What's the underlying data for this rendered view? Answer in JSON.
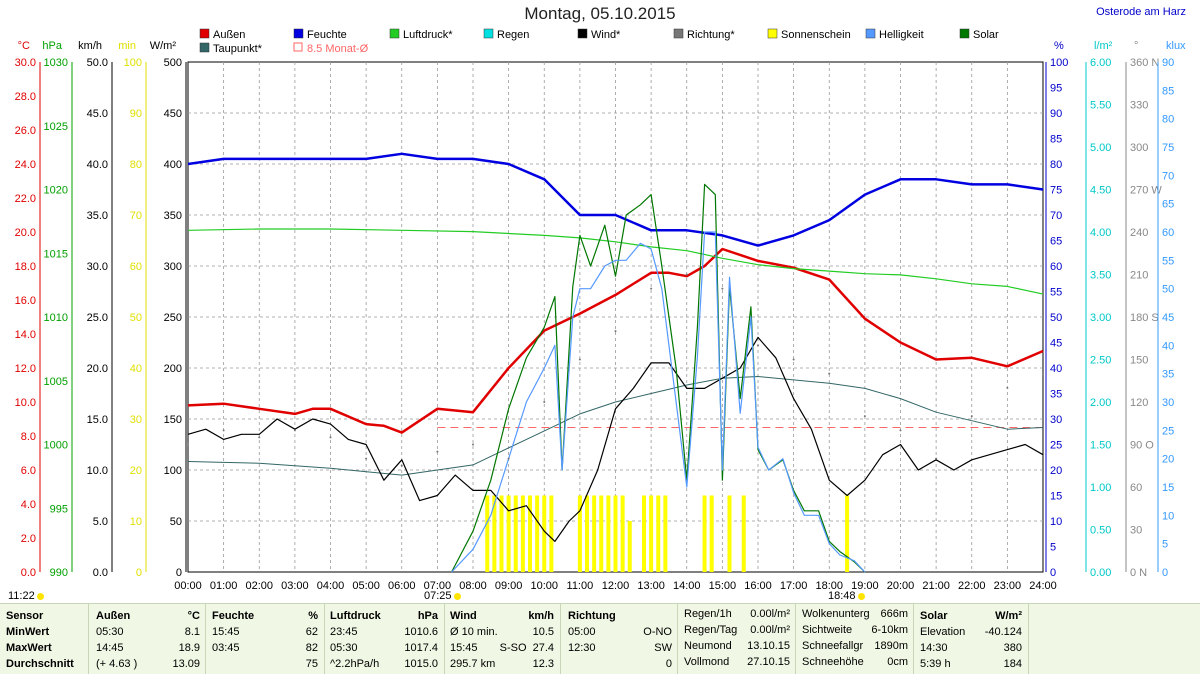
{
  "title": "Montag, 05.10.2015",
  "location": "Osterode am Harz",
  "sunrise": "07:25",
  "sunset": "18:48",
  "sun_duration_marker": "11:22",
  "legend": [
    {
      "label": "Außen",
      "color": "#e00000"
    },
    {
      "label": "Feuchte",
      "color": "#0000e0"
    },
    {
      "label": "Luftdruck*",
      "color": "#22cc22"
    },
    {
      "label": "Regen",
      "color": "#00e0e0"
    },
    {
      "label": "Wind*",
      "color": "#000000"
    },
    {
      "label": "Richtung*",
      "color": "#777777"
    },
    {
      "label": "Sonnenschein",
      "color": "#ffff00"
    },
    {
      "label": "Helligkeit",
      "color": "#5599ff"
    },
    {
      "label": "Solar",
      "color": "#007700"
    },
    {
      "label": "Taupunkt*",
      "color": "#336666"
    },
    {
      "label": "8.5 Monat-Ø",
      "color": "#ff6666"
    }
  ],
  "left_axes": [
    {
      "unit": "°C",
      "color": "#e00000",
      "ticks": [
        "30.0",
        "28.0",
        "26.0",
        "24.0",
        "22.0",
        "20.0",
        "18.0",
        "16.0",
        "14.0",
        "12.0",
        "10.0",
        "8.0",
        "6.0",
        "4.0",
        "2.0",
        "0.0"
      ]
    },
    {
      "unit": "hPa",
      "color": "#00a000",
      "ticks": [
        "1030",
        "1025",
        "1020",
        "1015",
        "1010",
        "1005",
        "1000",
        "995",
        "990"
      ]
    },
    {
      "unit": "km/h",
      "color": "#000000",
      "ticks": [
        "50.0",
        "45.0",
        "40.0",
        "35.0",
        "30.0",
        "25.0",
        "20.0",
        "15.0",
        "10.0",
        "5.0",
        "0.0"
      ]
    },
    {
      "unit": "min",
      "color": "#e0e000",
      "ticks": [
        "100",
        "90",
        "80",
        "70",
        "60",
        "50",
        "40",
        "30",
        "20",
        "10",
        "0"
      ]
    },
    {
      "unit": "W/m²",
      "color": "#000000",
      "ticks": [
        "500",
        "450",
        "400",
        "350",
        "300",
        "250",
        "200",
        "150",
        "100",
        "50",
        "0"
      ]
    }
  ],
  "right_axes": [
    {
      "unit": "%",
      "color": "#0000cc",
      "ticks": [
        "100",
        "95",
        "90",
        "85",
        "80",
        "75",
        "70",
        "65",
        "60",
        "55",
        "50",
        "45",
        "40",
        "35",
        "30",
        "25",
        "20",
        "15",
        "10",
        "5",
        "0"
      ]
    },
    {
      "unit": "l/m²",
      "color": "#00c8c8",
      "ticks": [
        "6.00",
        "5.50",
        "5.00",
        "4.50",
        "4.00",
        "3.50",
        "3.00",
        "2.50",
        "2.00",
        "1.50",
        "1.00",
        "0.50",
        "0.00"
      ]
    },
    {
      "unit": "°",
      "color": "#888888",
      "ticks": [
        "360 N",
        "330",
        "300",
        "270 W",
        "240",
        "210",
        "180 S",
        "150",
        "120",
        "90 O",
        "60",
        "30",
        "0 N"
      ]
    },
    {
      "unit": "klux",
      "color": "#3399ff",
      "ticks": [
        "90",
        "85",
        "80",
        "75",
        "70",
        "65",
        "60",
        "55",
        "50",
        "45",
        "40",
        "35",
        "30",
        "25",
        "20",
        "15",
        "10",
        "5",
        "0"
      ]
    }
  ],
  "chart_data": {
    "type": "line",
    "x": [
      "00:00",
      "01:00",
      "02:00",
      "03:00",
      "04:00",
      "05:00",
      "06:00",
      "07:00",
      "08:00",
      "09:00",
      "10:00",
      "11:00",
      "12:00",
      "13:00",
      "14:00",
      "15:00",
      "16:00",
      "17:00",
      "18:00",
      "19:00",
      "20:00",
      "21:00",
      "22:00",
      "23:00",
      "24:00"
    ],
    "series": [
      {
        "name": "Außen",
        "color": "#e00000",
        "axis": "°C",
        "x": [
          0,
          1,
          2,
          3,
          3.5,
          4,
          5,
          5.5,
          6,
          7,
          8,
          9,
          10,
          11,
          12,
          13,
          13.5,
          14,
          14.5,
          15,
          16,
          17,
          18,
          19,
          20,
          21,
          22,
          23,
          24
        ],
        "y": [
          9.8,
          9.9,
          9.6,
          9.3,
          9.6,
          9.6,
          8.7,
          8.6,
          8.2,
          9.6,
          9.4,
          12.0,
          14.2,
          15.2,
          16.3,
          17.6,
          17.6,
          17.4,
          18.0,
          19.0,
          18.3,
          17.9,
          17.2,
          14.9,
          13.5,
          12.5,
          12.6,
          12.1,
          13.0
        ]
      },
      {
        "name": "Feuchte",
        "color": "#0000e0",
        "axis": "%",
        "x": [
          0,
          1,
          2,
          3,
          4,
          5,
          6,
          7,
          8,
          9,
          10,
          11,
          12,
          13,
          14,
          15,
          16,
          17,
          18,
          19,
          20,
          21,
          22,
          23,
          24
        ],
        "y": [
          80,
          81,
          81,
          81,
          81,
          81,
          82,
          81,
          81,
          80,
          77,
          70,
          70,
          67,
          67,
          66,
          64,
          66,
          69,
          74,
          77,
          77,
          76,
          76,
          75
        ]
      },
      {
        "name": "Luftdruck*",
        "color": "#22cc22",
        "axis": "hPa",
        "x": [
          0,
          2,
          4,
          6,
          8,
          10,
          11,
          12,
          13,
          14,
          15,
          16,
          17,
          18,
          19,
          20,
          21,
          22,
          23,
          24
        ],
        "y": [
          1016.8,
          1016.9,
          1016.9,
          1016.8,
          1016.7,
          1016.4,
          1016.2,
          1015.9,
          1015.5,
          1015.2,
          1014.6,
          1014.1,
          1013.8,
          1013.6,
          1013.4,
          1013.3,
          1013.0,
          1012.6,
          1012.4,
          1011.8
        ]
      },
      {
        "name": "Taupunkt*",
        "color": "#336666",
        "axis": "°C",
        "x": [
          0,
          2,
          4,
          6,
          8,
          10,
          11,
          12,
          13,
          14,
          15,
          16,
          17,
          18,
          19,
          20,
          21,
          22,
          23,
          24
        ],
        "y": [
          6.5,
          6.4,
          6.1,
          5.7,
          6.3,
          8.3,
          9.3,
          10.0,
          10.5,
          11.0,
          11.4,
          11.5,
          11.3,
          11.1,
          10.8,
          10.2,
          9.4,
          8.9,
          8.4,
          8.5
        ]
      },
      {
        "name": "Wind*",
        "color": "#000000",
        "axis": "km/h",
        "x": [
          0,
          0.5,
          1,
          1.5,
          2,
          2.5,
          3,
          3.5,
          4,
          4.5,
          5,
          5.5,
          6,
          6.5,
          7,
          7.5,
          8,
          8.5,
          9,
          9.5,
          10,
          10.3,
          10.7,
          11,
          11.5,
          12,
          12.5,
          13,
          13.5,
          14,
          14.5,
          15,
          15.5,
          16,
          16.5,
          17,
          17.5,
          18,
          18.5,
          19,
          19.5,
          20,
          20.5,
          21,
          21.5,
          22,
          22.5,
          23,
          23.5,
          24
        ],
        "y": [
          13.5,
          14,
          13,
          13.5,
          13.5,
          15,
          14,
          15,
          14.5,
          13,
          12.5,
          9,
          11,
          7,
          7.5,
          9.5,
          8,
          8,
          6,
          6.5,
          4,
          3,
          5,
          6,
          10,
          16,
          18,
          20.5,
          20.5,
          18,
          18,
          19,
          20,
          23,
          21,
          17,
          14,
          9,
          7.5,
          9,
          11.5,
          12.5,
          10,
          11,
          10,
          11,
          11.5,
          12,
          12.5,
          11.5
        ]
      },
      {
        "name": "Solar",
        "color": "#007700",
        "axis": "W/m²",
        "x": [
          7.4,
          8,
          8.5,
          9,
          9.5,
          10,
          10.3,
          10.5,
          10.8,
          11,
          11.3,
          11.7,
          12,
          12.3,
          12.7,
          13,
          13.3,
          13.7,
          14,
          14.3,
          14.5,
          14.8,
          15,
          15.2,
          15.5,
          15.8,
          16,
          16.3,
          16.7,
          17,
          17.3,
          17.7,
          18,
          18.3,
          18.7,
          19
        ],
        "y": [
          0,
          40,
          90,
          160,
          210,
          240,
          270,
          100,
          280,
          330,
          300,
          340,
          290,
          350,
          360,
          370,
          300,
          200,
          90,
          240,
          380,
          370,
          90,
          280,
          170,
          260,
          120,
          100,
          110,
          80,
          60,
          60,
          30,
          20,
          10,
          0
        ]
      },
      {
        "name": "Helligkeit",
        "color": "#5599ff",
        "axis": "klux",
        "x": [
          7.4,
          8,
          8.5,
          9,
          9.5,
          10,
          10.3,
          10.5,
          10.8,
          11,
          11.3,
          11.7,
          12,
          12.3,
          12.7,
          13,
          13.3,
          13.7,
          14,
          14.3,
          14.5,
          14.8,
          15,
          15.2,
          15.5,
          15.8,
          16,
          16.3,
          16.7,
          17,
          17.3,
          17.7,
          18,
          18.3,
          18.7,
          19
        ],
        "y": [
          0,
          4,
          10,
          20,
          30,
          36,
          40,
          18,
          45,
          50,
          50,
          54,
          55,
          55,
          58,
          57,
          50,
          30,
          15,
          38,
          60,
          60,
          18,
          52,
          28,
          45,
          22,
          18,
          20,
          14,
          10,
          10,
          5,
          3,
          2,
          0
        ]
      },
      {
        "name": "Richtung*",
        "color": "#777777",
        "axis": "°",
        "x": [
          0,
          1,
          2,
          3,
          4,
          5,
          6,
          7,
          8,
          9,
          10,
          11,
          12,
          13,
          14,
          15,
          16,
          17,
          18,
          19,
          20,
          21,
          22,
          23,
          24
        ],
        "y": [
          90,
          100,
          95,
          100,
          95,
          80,
          75,
          85,
          90,
          80,
          120,
          150,
          170,
          200,
          210,
          200,
          160,
          150,
          140,
          110,
          100,
          80,
          110,
          130,
          140
        ]
      }
    ],
    "sunshine_bars": {
      "name": "Sonnenschein",
      "axis": "min",
      "x": [
        8.4,
        8.6,
        8.8,
        9.0,
        9.2,
        9.4,
        9.6,
        9.8,
        10.0,
        10.2,
        11.0,
        11.2,
        11.4,
        11.6,
        11.8,
        12.0,
        12.2,
        12.4,
        12.8,
        13.0,
        13.2,
        13.4,
        14.5,
        14.7,
        15.2,
        15.6,
        18.5
      ],
      "y": [
        15,
        15,
        15,
        15,
        15,
        15,
        15,
        15,
        15,
        15,
        15,
        15,
        15,
        15,
        15,
        15,
        15,
        10,
        15,
        15,
        15,
        15,
        15,
        15,
        15,
        15,
        15
      ]
    },
    "reference_line": {
      "name": "8.5 Monat-Ø",
      "axis": "°C",
      "value": 8.5
    },
    "xlim": [
      0,
      24
    ]
  },
  "footer": {
    "sensor": {
      "head": "Sensor",
      "rows": [
        "MinWert",
        "MaxWert",
        "Durchschnitt"
      ]
    },
    "aussen": {
      "head": "Außen",
      "unit": "°C",
      "times": [
        "05:30",
        "14:45",
        "(+ 4.63 )"
      ],
      "values": [
        "8.1",
        "18.9",
        "13.09"
      ]
    },
    "feuchte": {
      "head": "Feuchte",
      "unit": "%",
      "times": [
        "15:45",
        "03:45",
        ""
      ],
      "values": [
        "62",
        "82",
        "75"
      ]
    },
    "luftdruck": {
      "head": "Luftdruck",
      "unit": "hPa",
      "times": [
        "23:45",
        "05:30",
        "^2.2hPa/h"
      ],
      "values": [
        "1010.6",
        "1017.4",
        "1015.0"
      ]
    },
    "wind": {
      "head": "Wind",
      "unit": "km/h",
      "times": [
        "Ø 10 min.",
        "15:45",
        "295.7 km"
      ],
      "mid": [
        "",
        "S-SO",
        "",
        ""
      ],
      "values": [
        "10.5",
        "27.4",
        "12.3"
      ]
    },
    "richtung": {
      "head": "Richtung",
      "times": [
        "05:00",
        "12:30",
        ""
      ],
      "values": [
        "O-NO",
        "SW",
        "0"
      ]
    },
    "regen": {
      "labels": [
        "Regen/1h",
        "Regen/Tag",
        "Neumond",
        "Vollmond"
      ],
      "values": [
        "0.00l/m²",
        "0.00l/m²",
        "13.10.15",
        "27.10.15"
      ]
    },
    "wolken": {
      "labels": [
        "Wolkenunterg",
        "Sichtweite",
        "Schneefallgr",
        "Schneehöhe"
      ],
      "values": [
        "666m",
        "6-10km",
        "1890m",
        "0cm"
      ]
    },
    "solar": {
      "head": "Solar",
      "unit": "W/m²",
      "labels": [
        "Elevation",
        "14:30",
        "5:39 h"
      ],
      "values": [
        "-40.124",
        "380",
        "184"
      ]
    }
  }
}
